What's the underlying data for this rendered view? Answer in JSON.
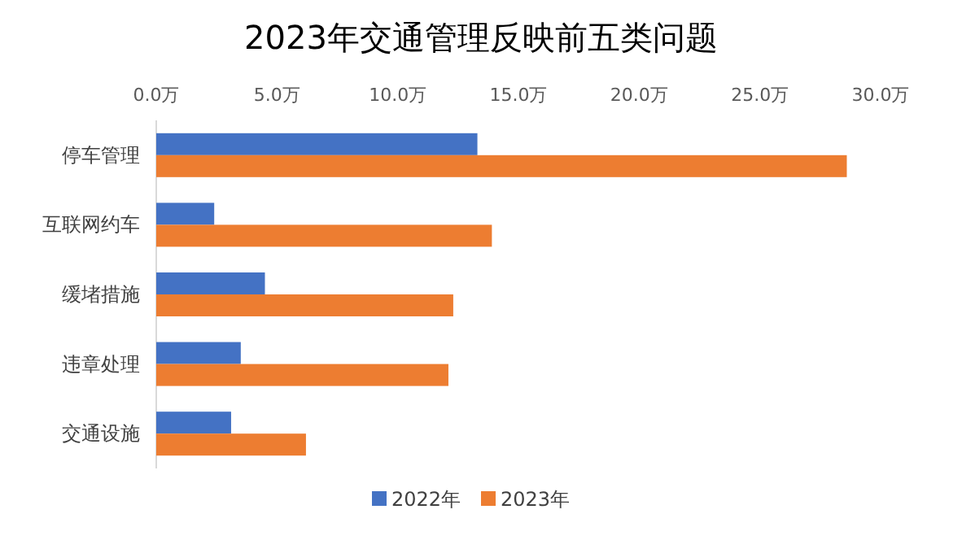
{
  "chart_data": {
    "type": "bar",
    "orientation": "horizontal",
    "title": "2023年交通管理反映前五类问题",
    "categories": [
      "停车管理",
      "互联网约车",
      "缓堵措施",
      "违章处理",
      "交通设施"
    ],
    "series": [
      {
        "name": "2022年",
        "color": "#4472c4",
        "values": [
          13.3,
          2.4,
          4.5,
          3.5,
          3.1
        ]
      },
      {
        "name": "2023年",
        "color": "#ed7d31",
        "values": [
          28.6,
          13.9,
          12.3,
          12.1,
          6.2
        ]
      }
    ],
    "xlim": [
      0,
      30
    ],
    "xticks": [
      {
        "value": 0,
        "label": "0.0万"
      },
      {
        "value": 5,
        "label": "5.0万"
      },
      {
        "value": 10,
        "label": "10.0万"
      },
      {
        "value": 15,
        "label": "15.0万"
      },
      {
        "value": 20,
        "label": "20.0万"
      },
      {
        "value": 25,
        "label": "25.0万"
      },
      {
        "value": 30,
        "label": "30.0万"
      }
    ],
    "grid": false,
    "legend": "bottom"
  }
}
